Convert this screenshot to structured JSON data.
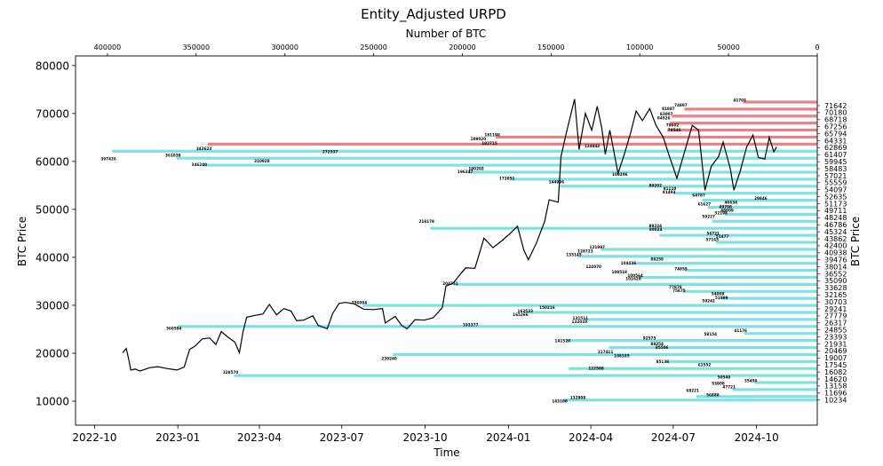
{
  "chart_data": {
    "type": "bar+line",
    "title": "Entity_Adjusted URPD",
    "xlabel_bottom": "Time",
    "xlabel_top": "Number of BTC",
    "ylabel_left": "BTC Price",
    "ylabel_right": "BTC Price",
    "ylim": [
      5000,
      82000
    ],
    "yticks_left": [
      "10000",
      "20000",
      "30000",
      "40000",
      "50000",
      "60000",
      "70000",
      "80000"
    ],
    "time_ticks": [
      "2022-10",
      "2023-01",
      "2023-04",
      "2023-07",
      "2023-10",
      "2024-01",
      "2024-04",
      "2024-07",
      "2024-10"
    ],
    "time_range": [
      "2022-09-10",
      "2024-12-07"
    ],
    "btc_axis_range": [
      418000,
      0
    ],
    "btc_ticks": [
      "400000",
      "350000",
      "300000",
      "250000",
      "200000",
      "150000",
      "100000",
      "50000",
      "0"
    ],
    "colors": {
      "above_price": "#f08080",
      "below_price": "#80e2e0",
      "price_line": "#000000"
    },
    "current_price": 62869,
    "right_ticks": [
      "71642",
      "70180",
      "68718",
      "67256",
      "65794",
      "64331",
      "62869",
      "61407",
      "59945",
      "58483",
      "57021",
      "55559",
      "54097",
      "52635",
      "51173",
      "49711",
      "48248",
      "46786",
      "45324",
      "43862",
      "42400",
      "40938",
      "39476",
      "38014",
      "36552",
      "35090",
      "33628",
      "32165",
      "30703",
      "29241",
      "27779",
      "26317",
      "24855",
      "23393",
      "21931",
      "20469",
      "19007",
      "17545",
      "16082",
      "14620",
      "13158",
      "11696",
      "10234"
    ],
    "bins": [
      {
        "price": 72373,
        "btc": 41703
      },
      {
        "price": 70911,
        "btc": 74897
      },
      {
        "price": 69449,
        "btc": 81887
      },
      {
        "price": 67987,
        "btc": 83007
      },
      {
        "price": 66525,
        "btc": 84526
      },
      {
        "price": 65063,
        "btc": 181190
      },
      {
        "price": 63600,
        "btc": 343623
      },
      {
        "price": 62138,
        "btc": 397426
      },
      {
        "price": 60676,
        "btc": 361038
      },
      {
        "price": 59214,
        "btc": 346240
      },
      {
        "price": 57752,
        "btc": 196347
      },
      {
        "price": 56290,
        "btc": 172851
      },
      {
        "price": 54828,
        "btc": 144996
      },
      {
        "price": 53366,
        "btc": 81110
      },
      {
        "price": 51904,
        "btc": 64787
      },
      {
        "price": 50442,
        "btc": 61627
      },
      {
        "price": 48979,
        "btc": 52198
      },
      {
        "price": 47517,
        "btc": 59227
      },
      {
        "price": 46055,
        "btc": 218178
      },
      {
        "price": 44593,
        "btc": 89024
      },
      {
        "price": 43131,
        "btc": 57165
      },
      {
        "price": 41669,
        "btc": 121997
      },
      {
        "price": 40207,
        "btc": 135145
      },
      {
        "price": 38745,
        "btc": 104436
      },
      {
        "price": 37283,
        "btc": 74855
      },
      {
        "price": 35821,
        "btc": 100564
      },
      {
        "price": 34359,
        "btc": 204751
      },
      {
        "price": 32897,
        "btc": 75875
      },
      {
        "price": 31434,
        "btc": 54008
      },
      {
        "price": 29972,
        "btc": 256094
      },
      {
        "price": 28510,
        "btc": 165266
      },
      {
        "price": 27048,
        "btc": 131511
      },
      {
        "price": 25586,
        "btc": 360594
      },
      {
        "price": 24124,
        "btc": 41170
      },
      {
        "price": 22662,
        "btc": 141520
      },
      {
        "price": 21200,
        "btc": 117411
      },
      {
        "price": 19738,
        "btc": 239240
      },
      {
        "price": 18276,
        "btc": 85136
      },
      {
        "price": 16814,
        "btc": 140000
      },
      {
        "price": 15351,
        "btc": 328570
      },
      {
        "price": 13889,
        "btc": 35450
      },
      {
        "price": 12427,
        "btc": 47721
      },
      {
        "price": 10965,
        "btc": 68221
      },
      {
        "price": 10234,
        "btc": 143100
      }
    ],
    "bar_labels": [
      {
        "text": "41703",
        "btc": 41703,
        "price": 72700
      },
      {
        "text": "74897",
        "btc": 74897,
        "price": 71700
      },
      {
        "text": "81887",
        "btc": 81887,
        "price": 71000
      },
      {
        "text": "83007",
        "btc": 83007,
        "price": 69900
      },
      {
        "text": "84526",
        "btc": 84526,
        "price": 69000
      },
      {
        "text": "79602",
        "btc": 79602,
        "price": 67600
      },
      {
        "text": "78546",
        "btc": 78546,
        "price": 66500
      },
      {
        "text": "181190",
        "btc": 181190,
        "price": 65500
      },
      {
        "text": "189020",
        "btc": 189020,
        "price": 64700
      },
      {
        "text": "182715",
        "btc": 182715,
        "price": 63800
      },
      {
        "text": "124842",
        "btc": 124842,
        "price": 63200
      },
      {
        "text": "343623",
        "btc": 343623,
        "price": 62700
      },
      {
        "text": "272537",
        "btc": 272537,
        "price": 62000
      },
      {
        "text": "361038",
        "btc": 361038,
        "price": 61300
      },
      {
        "text": "397426",
        "btc": 397426,
        "price": 60500
      },
      {
        "text": "310928",
        "btc": 310928,
        "price": 60100
      },
      {
        "text": "346240",
        "btc": 346240,
        "price": 59300
      },
      {
        "text": "190202",
        "btc": 190202,
        "price": 58500
      },
      {
        "text": "196347",
        "btc": 196347,
        "price": 57800
      },
      {
        "text": "109206",
        "btc": 109206,
        "price": 57300
      },
      {
        "text": "172851",
        "btc": 172851,
        "price": 56500
      },
      {
        "text": "144996",
        "btc": 144996,
        "price": 55700
      },
      {
        "text": "89202",
        "btc": 89202,
        "price": 55000
      },
      {
        "text": "81110",
        "btc": 81110,
        "price": 54300
      },
      {
        "text": "81493",
        "btc": 81493,
        "price": 53600
      },
      {
        "text": "64787",
        "btc": 64787,
        "price": 52900
      },
      {
        "text": "29846",
        "btc": 29846,
        "price": 52300
      },
      {
        "text": "46634",
        "btc": 46634,
        "price": 51500
      },
      {
        "text": "61627",
        "btc": 61627,
        "price": 51100
      },
      {
        "text": "49708",
        "btc": 49708,
        "price": 50500
      },
      {
        "text": "48809",
        "btc": 48809,
        "price": 49800
      },
      {
        "text": "52198",
        "btc": 52198,
        "price": 49200
      },
      {
        "text": "59227",
        "btc": 59227,
        "price": 48500
      },
      {
        "text": "218178",
        "btc": 218178,
        "price": 47500
      },
      {
        "text": "89224",
        "btc": 89224,
        "price": 46600
      },
      {
        "text": "89024",
        "btc": 89024,
        "price": 45800
      },
      {
        "text": "56721",
        "btc": 56721,
        "price": 45000
      },
      {
        "text": "51477",
        "btc": 51477,
        "price": 44300
      },
      {
        "text": "57165",
        "btc": 57165,
        "price": 43700
      },
      {
        "text": "121997",
        "btc": 121997,
        "price": 42100
      },
      {
        "text": "128723",
        "btc": 128723,
        "price": 41300
      },
      {
        "text": "135145",
        "btc": 135145,
        "price": 40500
      },
      {
        "text": "88258",
        "btc": 88258,
        "price": 39600
      },
      {
        "text": "104436",
        "btc": 104436,
        "price": 38800
      },
      {
        "text": "124070",
        "btc": 124070,
        "price": 38000
      },
      {
        "text": "74855",
        "btc": 74855,
        "price": 37600
      },
      {
        "text": "109518",
        "btc": 109518,
        "price": 36900
      },
      {
        "text": "100564",
        "btc": 100564,
        "price": 36200
      },
      {
        "text": "101628",
        "btc": 101628,
        "price": 35500
      },
      {
        "text": "204751",
        "btc": 204751,
        "price": 34500
      },
      {
        "text": "77878",
        "btc": 77878,
        "price": 33800
      },
      {
        "text": "75875",
        "btc": 75875,
        "price": 33000
      },
      {
        "text": "54008",
        "btc": 54008,
        "price": 32400
      },
      {
        "text": "51899",
        "btc": 51899,
        "price": 31600
      },
      {
        "text": "59242",
        "btc": 59242,
        "price": 30900
      },
      {
        "text": "256094",
        "btc": 256094,
        "price": 30500
      },
      {
        "text": "150216",
        "btc": 150216,
        "price": 29500
      },
      {
        "text": "162533",
        "btc": 162533,
        "price": 28800
      },
      {
        "text": "165266",
        "btc": 165266,
        "price": 28000
      },
      {
        "text": "131511",
        "btc": 131511,
        "price": 27300
      },
      {
        "text": "132010",
        "btc": 132010,
        "price": 26600
      },
      {
        "text": "193377",
        "btc": 193377,
        "price": 25900
      },
      {
        "text": "360594",
        "btc": 360594,
        "price": 25200
      },
      {
        "text": "41176",
        "btc": 41176,
        "price": 24700
      },
      {
        "text": "58154",
        "btc": 58154,
        "price": 24000
      },
      {
        "text": "92575",
        "btc": 92575,
        "price": 23100
      },
      {
        "text": "141520",
        "btc": 141520,
        "price": 22600
      },
      {
        "text": "88254",
        "btc": 88254,
        "price": 21900
      },
      {
        "text": "85506",
        "btc": 85506,
        "price": 21200
      },
      {
        "text": "117411",
        "btc": 117411,
        "price": 20300
      },
      {
        "text": "108185",
        "btc": 108185,
        "price": 19400
      },
      {
        "text": "239240",
        "btc": 239240,
        "price": 18900
      },
      {
        "text": "85136",
        "btc": 85136,
        "price": 18200
      },
      {
        "text": "61552",
        "btc": 61552,
        "price": 17600
      },
      {
        "text": "122588",
        "btc": 122588,
        "price": 16800
      },
      {
        "text": "328570",
        "btc": 328570,
        "price": 16000
      },
      {
        "text": "50549",
        "btc": 50549,
        "price": 15000
      },
      {
        "text": "35450",
        "btc": 35450,
        "price": 14300
      },
      {
        "text": "53808",
        "btc": 53808,
        "price": 13700
      },
      {
        "text": "47721",
        "btc": 47721,
        "price": 13000
      },
      {
        "text": "68221",
        "btc": 68221,
        "price": 12200
      },
      {
        "text": "56888",
        "btc": 56888,
        "price": 11300
      },
      {
        "text": "132908",
        "btc": 132908,
        "price": 10700
      },
      {
        "text": "143100",
        "btc": 143100,
        "price": 10000
      }
    ],
    "price_series": [
      [
        "2022-11-01",
        20100
      ],
      [
        "2022-11-05",
        21000
      ],
      [
        "2022-11-08",
        18500
      ],
      [
        "2022-11-10",
        16500
      ],
      [
        "2022-11-15",
        16700
      ],
      [
        "2022-11-20",
        16300
      ],
      [
        "2022-11-25",
        16600
      ],
      [
        "2022-12-01",
        17000
      ],
      [
        "2022-12-10",
        17200
      ],
      [
        "2022-12-20",
        16800
      ],
      [
        "2022-12-31",
        16500
      ],
      [
        "2023-01-08",
        17100
      ],
      [
        "2023-01-14",
        20800
      ],
      [
        "2023-01-20",
        21500
      ],
      [
        "2023-01-28",
        23000
      ],
      [
        "2023-02-05",
        23200
      ],
      [
        "2023-02-12",
        21800
      ],
      [
        "2023-02-18",
        24500
      ],
      [
        "2023-02-25",
        23400
      ],
      [
        "2023-03-05",
        22300
      ],
      [
        "2023-03-10",
        20100
      ],
      [
        "2023-03-14",
        24500
      ],
      [
        "2023-03-18",
        27500
      ],
      [
        "2023-03-25",
        27800
      ],
      [
        "2023-04-05",
        28200
      ],
      [
        "2023-04-12",
        30200
      ],
      [
        "2023-04-20",
        28000
      ],
      [
        "2023-04-28",
        29300
      ],
      [
        "2023-05-06",
        28800
      ],
      [
        "2023-05-12",
        26800
      ],
      [
        "2023-05-20",
        26900
      ],
      [
        "2023-05-30",
        27800
      ],
      [
        "2023-06-05",
        25800
      ],
      [
        "2023-06-15",
        25100
      ],
      [
        "2023-06-21",
        28300
      ],
      [
        "2023-06-28",
        30400
      ],
      [
        "2023-07-05",
        30600
      ],
      [
        "2023-07-15",
        30300
      ],
      [
        "2023-07-25",
        29200
      ],
      [
        "2023-08-05",
        29100
      ],
      [
        "2023-08-15",
        29300
      ],
      [
        "2023-08-18",
        26300
      ],
      [
        "2023-08-29",
        27700
      ],
      [
        "2023-09-05",
        25800
      ],
      [
        "2023-09-11",
        25100
      ],
      [
        "2023-09-20",
        27000
      ],
      [
        "2023-09-30",
        26900
      ],
      [
        "2023-10-10",
        27400
      ],
      [
        "2023-10-20",
        29500
      ],
      [
        "2023-10-24",
        34000
      ],
      [
        "2023-11-01",
        34600
      ],
      [
        "2023-11-09",
        36500
      ],
      [
        "2023-11-15",
        37800
      ],
      [
        "2023-11-25",
        37700
      ],
      [
        "2023-12-05",
        44000
      ],
      [
        "2023-12-15",
        42000
      ],
      [
        "2023-12-25",
        43500
      ],
      [
        "2024-01-03",
        45000
      ],
      [
        "2024-01-11",
        46500
      ],
      [
        "2024-01-18",
        41500
      ],
      [
        "2024-01-23",
        39500
      ],
      [
        "2024-02-01",
        43000
      ],
      [
        "2024-02-10",
        47500
      ],
      [
        "2024-02-15",
        52000
      ],
      [
        "2024-02-25",
        51500
      ],
      [
        "2024-02-28",
        61000
      ],
      [
        "2024-03-05",
        66000
      ],
      [
        "2024-03-14",
        73000
      ],
      [
        "2024-03-19",
        62500
      ],
      [
        "2024-03-26",
        70000
      ],
      [
        "2024-04-02",
        66500
      ],
      [
        "2024-04-08",
        71500
      ],
      [
        "2024-04-13",
        67000
      ],
      [
        "2024-04-17",
        61500
      ],
      [
        "2024-04-22",
        66500
      ],
      [
        "2024-05-01",
        57500
      ],
      [
        "2024-05-08",
        61500
      ],
      [
        "2024-05-15",
        66000
      ],
      [
        "2024-05-21",
        70500
      ],
      [
        "2024-05-28",
        68500
      ],
      [
        "2024-06-05",
        71000
      ],
      [
        "2024-06-12",
        67500
      ],
      [
        "2024-06-20",
        65000
      ],
      [
        "2024-06-26",
        61500
      ],
      [
        "2024-07-05",
        56500
      ],
      [
        "2024-07-15",
        63000
      ],
      [
        "2024-07-22",
        67500
      ],
      [
        "2024-07-29",
        66500
      ],
      [
        "2024-08-05",
        54000
      ],
      [
        "2024-08-12",
        59000
      ],
      [
        "2024-08-20",
        61000
      ],
      [
        "2024-08-25",
        64000
      ],
      [
        "2024-09-02",
        58500
      ],
      [
        "2024-09-06",
        54000
      ],
      [
        "2024-09-13",
        58000
      ],
      [
        "2024-09-20",
        63000
      ],
      [
        "2024-09-27",
        65500
      ],
      [
        "2024-10-03",
        60800
      ],
      [
        "2024-10-10",
        60500
      ],
      [
        "2024-10-15",
        65000
      ],
      [
        "2024-10-20",
        62000
      ],
      [
        "2024-10-23",
        63000
      ]
    ]
  }
}
